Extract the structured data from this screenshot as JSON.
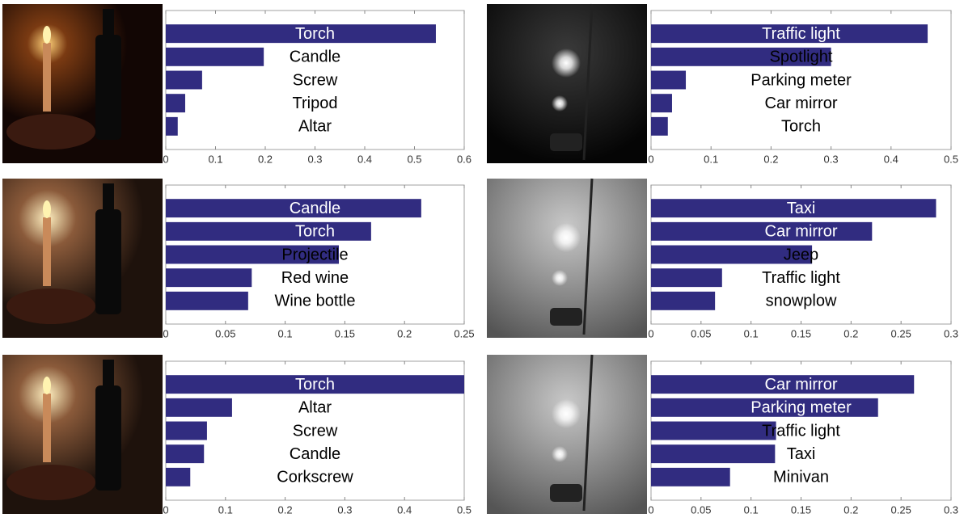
{
  "chart_data": [
    {
      "type": "bar",
      "categories": [
        "Torch",
        "Candle",
        "Screw",
        "Tripod",
        "Altar"
      ],
      "values": [
        0.543,
        0.197,
        0.073,
        0.039,
        0.024
      ],
      "color": "#312c80",
      "xlim": [
        0,
        0.6
      ],
      "xticks": [
        0,
        0.1,
        0.2,
        0.3,
        0.4,
        0.5,
        0.6
      ]
    },
    {
      "type": "bar",
      "categories": [
        "Traffic light",
        "Spotlight",
        "Parking meter",
        "Car mirror",
        "Torch"
      ],
      "values": [
        0.461,
        0.3,
        0.058,
        0.035,
        0.028
      ],
      "color": "#312c80",
      "xlim": [
        0,
        0.5
      ],
      "xticks": [
        0,
        0.1,
        0.2,
        0.3,
        0.4,
        0.5
      ]
    },
    {
      "type": "bar",
      "categories": [
        "Candle",
        "Torch",
        "Projectile",
        "Red wine",
        "Wine bottle"
      ],
      "values": [
        0.214,
        0.172,
        0.145,
        0.072,
        0.069
      ],
      "color": "#312c80",
      "xlim": [
        0,
        0.25
      ],
      "xticks": [
        0,
        0.05,
        0.1,
        0.15,
        0.2,
        0.25
      ]
    },
    {
      "type": "bar",
      "categories": [
        "Taxi",
        "Car mirror",
        "Jeep",
        "Traffic light",
        "snowplow"
      ],
      "values": [
        0.285,
        0.221,
        0.161,
        0.071,
        0.064
      ],
      "color": "#312c80",
      "xlim": [
        0,
        0.3
      ],
      "xticks": [
        0,
        0.05,
        0.1,
        0.15,
        0.2,
        0.25,
        0.3
      ]
    },
    {
      "type": "bar",
      "categories": [
        "Torch",
        "Altar",
        "Screw",
        "Candle",
        "Corkscrew"
      ],
      "values": [
        0.5,
        0.111,
        0.069,
        0.064,
        0.041
      ],
      "color": "#312c80",
      "xlim": [
        0,
        0.5
      ],
      "xticks": [
        0,
        0.1,
        0.2,
        0.3,
        0.4,
        0.5
      ]
    },
    {
      "type": "bar",
      "categories": [
        "Car mirror",
        "Parking meter",
        "Traffic light",
        "Taxi",
        "Minivan"
      ],
      "values": [
        0.263,
        0.227,
        0.125,
        0.124,
        0.079
      ],
      "color": "#312c80",
      "xlim": [
        0,
        0.3
      ],
      "xticks": [
        0,
        0.05,
        0.1,
        0.15,
        0.2,
        0.25,
        0.3
      ]
    }
  ]
}
